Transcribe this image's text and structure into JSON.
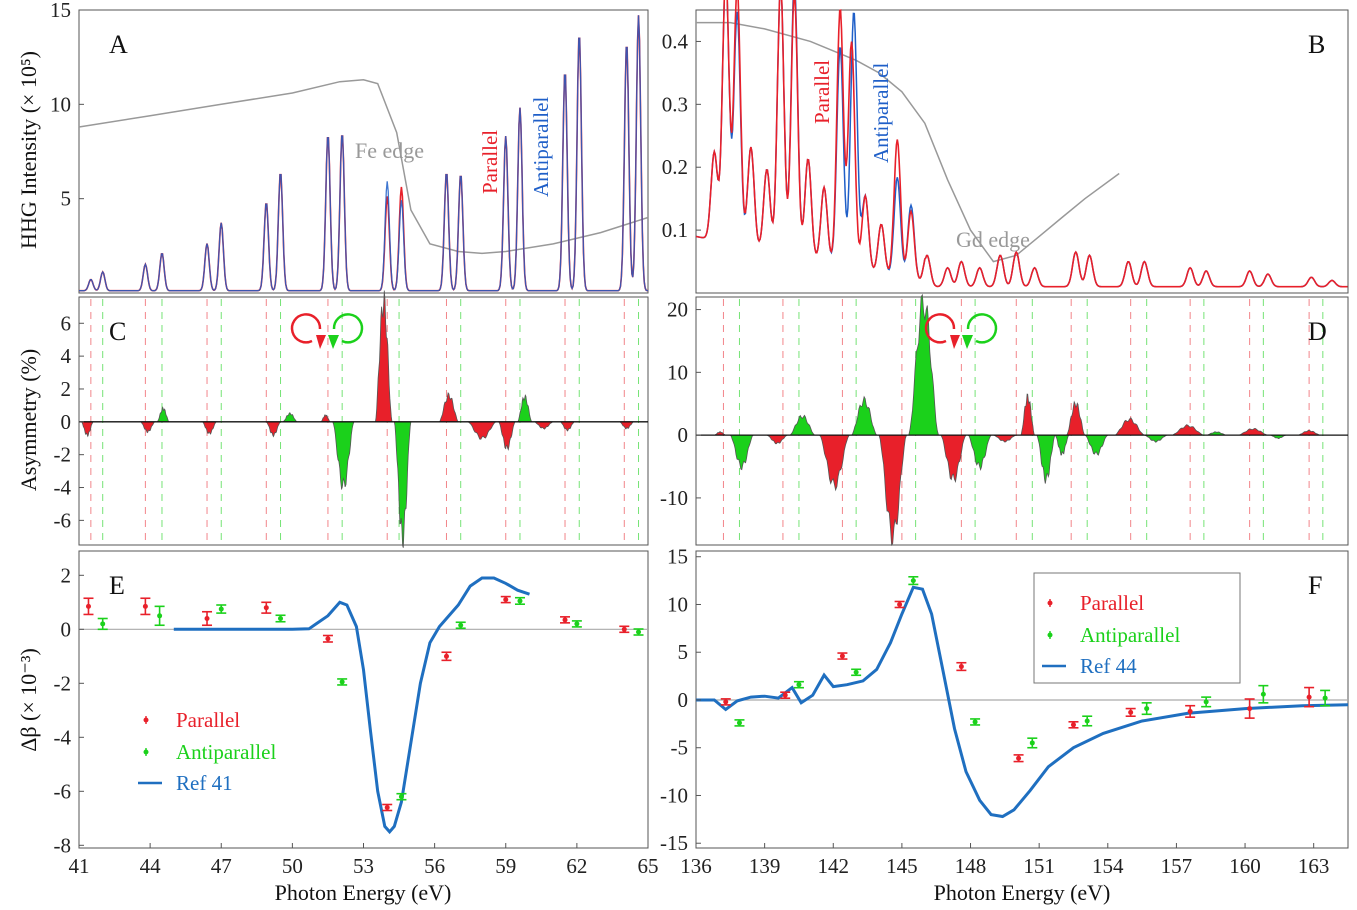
{
  "colors": {
    "parallel": "#e8202a",
    "antiparallel": "#1bd11b",
    "antiparallel_line": "#1f5fc8",
    "ref": "#1f6fc0",
    "edge": "#999999",
    "frame": "#555555",
    "overlay": "#8e3b7a"
  },
  "axes": {
    "x_label": "Photon Energy (eV)",
    "y_label_hhg": "HHG Intensity (× 10⁵)",
    "y_label_asym": "Asymmetry (%)",
    "y_label_dbeta": "Δβ (× 10⁻³)"
  },
  "chart_data": [
    {
      "panel": "A",
      "type": "line",
      "xlim": [
        41,
        65
      ],
      "ylim": [
        0,
        15
      ],
      "yticks": [
        5,
        10,
        15
      ],
      "series": [
        {
          "name": "Parallel"
        },
        {
          "name": "Antiparallel"
        }
      ],
      "harmonics_parallel": [
        [
          41.5,
          0.6
        ],
        [
          42.0,
          1.0
        ],
        [
          43.8,
          1.4
        ],
        [
          44.5,
          2.0
        ],
        [
          46.4,
          2.5
        ],
        [
          47.0,
          3.6
        ],
        [
          48.9,
          4.7
        ],
        [
          49.5,
          6.3
        ],
        [
          51.5,
          8.3
        ],
        [
          52.1,
          8.4
        ],
        [
          54.0,
          5.0
        ],
        [
          54.6,
          5.5
        ],
        [
          56.5,
          6.3
        ],
        [
          57.1,
          6.2
        ],
        [
          59.0,
          8.2
        ],
        [
          59.6,
          9.7
        ],
        [
          61.5,
          11.7
        ],
        [
          62.1,
          13.7
        ],
        [
          64.1,
          13.2
        ],
        [
          64.6,
          14.6
        ]
      ],
      "harmonics_antiparallel": [
        [
          54.0,
          5.8
        ],
        [
          54.6,
          4.8
        ]
      ],
      "edge_label": "Fe edge",
      "edge_curve": [
        [
          41,
          8.8
        ],
        [
          44,
          9.4
        ],
        [
          47,
          10.0
        ],
        [
          50,
          10.6
        ],
        [
          52,
          11.2
        ],
        [
          53,
          11.3
        ],
        [
          53.6,
          11.1
        ],
        [
          54.4,
          8.5
        ],
        [
          55,
          4.4
        ],
        [
          55.8,
          2.6
        ],
        [
          57,
          2.2
        ],
        [
          58,
          2.1
        ],
        [
          59,
          2.2
        ],
        [
          61,
          2.6
        ],
        [
          63,
          3.2
        ],
        [
          65,
          4.0
        ]
      ]
    },
    {
      "panel": "B",
      "type": "line",
      "xlim": [
        136,
        164.5
      ],
      "ylim": [
        0,
        0.45
      ],
      "yticks": [
        0.1,
        0.2,
        0.3,
        0.4
      ],
      "series": [
        {
          "name": "Parallel"
        },
        {
          "name": "Antiparallel"
        }
      ],
      "harmonics_parallel": [
        [
          136.8,
          0.14
        ],
        [
          137.3,
          0.43
        ],
        [
          137.8,
          0.41
        ],
        [
          138.4,
          0.16
        ],
        [
          139.1,
          0.13
        ],
        [
          139.7,
          0.43
        ],
        [
          140.3,
          0.42
        ],
        [
          140.9,
          0.16
        ],
        [
          141.6,
          0.12
        ],
        [
          142.3,
          0.41
        ],
        [
          142.8,
          0.36
        ],
        [
          143.4,
          0.12
        ],
        [
          144.1,
          0.08
        ],
        [
          144.8,
          0.22
        ],
        [
          145.4,
          0.11
        ],
        [
          146.1,
          0.05
        ],
        [
          147.0,
          0.03
        ],
        [
          147.6,
          0.04
        ],
        [
          148.4,
          0.03
        ],
        [
          149.3,
          0.05
        ],
        [
          150.0,
          0.055
        ],
        [
          150.8,
          0.03
        ],
        [
          152.6,
          0.055
        ],
        [
          153.2,
          0.05
        ],
        [
          154.9,
          0.04
        ],
        [
          155.6,
          0.04
        ],
        [
          157.6,
          0.03
        ],
        [
          158.3,
          0.025
        ],
        [
          160.2,
          0.025
        ],
        [
          161.0,
          0.02
        ],
        [
          162.9,
          0.015
        ],
        [
          163.8,
          0.01
        ]
      ],
      "harmonics_antiparallel": [
        [
          137.8,
          0.37
        ],
        [
          140.3,
          0.44
        ],
        [
          142.3,
          0.35
        ],
        [
          142.9,
          0.41
        ],
        [
          144.8,
          0.16
        ],
        [
          145.4,
          0.12
        ]
      ],
      "edge_label": "Gd edge",
      "edge_curve": [
        [
          136,
          0.43
        ],
        [
          137.5,
          0.43
        ],
        [
          139,
          0.42
        ],
        [
          141,
          0.4
        ],
        [
          143,
          0.37
        ],
        [
          144,
          0.35
        ],
        [
          145,
          0.32
        ],
        [
          146,
          0.27
        ],
        [
          147,
          0.18
        ],
        [
          148,
          0.1
        ],
        [
          149,
          0.05
        ],
        [
          150,
          0.06
        ],
        [
          151,
          0.09
        ],
        [
          152,
          0.12
        ],
        [
          153,
          0.15
        ],
        [
          154.5,
          0.19
        ]
      ]
    },
    {
      "panel": "C",
      "type": "area",
      "xlim": [
        41,
        65
      ],
      "ylim": [
        -7.5,
        7.6
      ],
      "yticks": [
        -6,
        -4,
        -2,
        0,
        2,
        4,
        6
      ],
      "parallel_harmonics": [
        41.5,
        43.8,
        46.4,
        48.9,
        51.5,
        54.0,
        56.5,
        59.0,
        61.5,
        64.0
      ],
      "antiparallel_harmonics": [
        42.0,
        44.5,
        47.0,
        49.5,
        52.1,
        54.5,
        57.1,
        59.6,
        62.1,
        64.6
      ],
      "lobes": [
        [
          41.1,
          41.6,
          -0.8,
          "red"
        ],
        [
          43.6,
          44.2,
          -0.6,
          "red"
        ],
        [
          44.3,
          44.8,
          0.8,
          "green"
        ],
        [
          46.2,
          46.8,
          -0.7,
          "red"
        ],
        [
          48.9,
          49.5,
          -0.8,
          "red"
        ],
        [
          49.6,
          50.2,
          0.5,
          "green"
        ],
        [
          51.2,
          51.6,
          0.4,
          "red"
        ],
        [
          51.7,
          52.6,
          -3.9,
          "green"
        ],
        [
          53.5,
          54.2,
          7.3,
          "red"
        ],
        [
          54.3,
          55.0,
          -7.0,
          "green"
        ],
        [
          56.2,
          57.0,
          1.6,
          "red"
        ],
        [
          57.4,
          58.6,
          -1.0,
          "red"
        ],
        [
          58.7,
          59.4,
          -1.6,
          "red"
        ],
        [
          59.5,
          60.1,
          1.5,
          "green"
        ],
        [
          60.2,
          61.0,
          -0.4,
          "red"
        ],
        [
          61.3,
          61.9,
          -0.5,
          "red"
        ],
        [
          63.8,
          64.4,
          -0.4,
          "red"
        ]
      ]
    },
    {
      "panel": "D",
      "type": "area",
      "xlim": [
        136,
        164.5
      ],
      "ylim": [
        -17.5,
        22
      ],
      "yticks": [
        -10,
        0,
        10,
        20
      ],
      "parallel_harmonics": [
        137.2,
        139.8,
        142.4,
        145.0,
        147.6,
        150.0,
        152.4,
        155.0,
        157.6,
        160.2,
        162.8
      ],
      "antiparallel_harmonics": [
        137.9,
        140.5,
        143.0,
        145.6,
        148.2,
        150.7,
        153.1,
        155.7,
        158.2,
        160.8,
        163.4
      ],
      "lobes": [
        [
          136.8,
          137.3,
          0.5,
          "red"
        ],
        [
          137.5,
          138.5,
          -5.0,
          "green"
        ],
        [
          139.1,
          140.0,
          -1.3,
          "red"
        ],
        [
          140.1,
          141.2,
          3.0,
          "green"
        ],
        [
          141.4,
          142.7,
          -8.0,
          "red"
        ],
        [
          142.8,
          143.9,
          5.5,
          "green"
        ],
        [
          144.0,
          145.2,
          -16.0,
          "red"
        ],
        [
          145.3,
          146.6,
          21.0,
          "green"
        ],
        [
          146.7,
          147.8,
          -7.0,
          "red"
        ],
        [
          147.9,
          148.9,
          -5.0,
          "green"
        ],
        [
          149.0,
          150.0,
          -1.0,
          "red"
        ],
        [
          150.2,
          150.8,
          6.0,
          "red"
        ],
        [
          150.9,
          151.7,
          -7.0,
          "green"
        ],
        [
          151.7,
          152.3,
          -3.0,
          "green"
        ],
        [
          152.2,
          153.0,
          5.0,
          "red"
        ],
        [
          153.0,
          154.0,
          -3.0,
          "green"
        ],
        [
          154.3,
          155.6,
          2.5,
          "red"
        ],
        [
          155.6,
          156.6,
          -1.0,
          "green"
        ],
        [
          156.8,
          158.2,
          1.5,
          "red"
        ],
        [
          158.3,
          159.2,
          0.5,
          "green"
        ],
        [
          159.7,
          161.0,
          1.0,
          "red"
        ],
        [
          161.1,
          161.8,
          -0.5,
          "green"
        ],
        [
          162.3,
          163.3,
          0.7,
          "red"
        ]
      ]
    },
    {
      "panel": "E",
      "type": "scatter",
      "xlim": [
        41,
        65
      ],
      "ylim": [
        -8.1,
        2.9
      ],
      "xticks": [
        41,
        44,
        47,
        50,
        53,
        56,
        59,
        62,
        65
      ],
      "yticks": [
        -8,
        -6,
        -4,
        -2,
        0,
        2
      ],
      "legend": {
        "position": "left",
        "parallel": "Parallel",
        "antiparallel": "Antiparallel",
        "ref": "Ref 41"
      },
      "parallel": [
        [
          41.4,
          0.85,
          0.3
        ],
        [
          43.8,
          0.85,
          0.3
        ],
        [
          46.4,
          0.4,
          0.25
        ],
        [
          48.9,
          0.8,
          0.2
        ],
        [
          51.5,
          -0.35,
          0.12
        ],
        [
          54.0,
          -6.6,
          0.1
        ],
        [
          56.5,
          -1.0,
          0.15
        ],
        [
          59.0,
          1.1,
          0.1
        ],
        [
          61.5,
          0.35,
          0.1
        ],
        [
          64.0,
          0.0,
          0.08
        ]
      ],
      "antiparallel": [
        [
          42.0,
          0.2,
          0.2
        ],
        [
          44.4,
          0.5,
          0.35
        ],
        [
          47.0,
          0.75,
          0.15
        ],
        [
          49.5,
          0.4,
          0.12
        ],
        [
          52.1,
          -1.95,
          0.1
        ],
        [
          54.6,
          -6.2,
          0.1
        ],
        [
          57.1,
          0.15,
          0.1
        ],
        [
          59.6,
          1.05,
          0.12
        ],
        [
          62.0,
          0.2,
          0.08
        ],
        [
          64.6,
          -0.1,
          0.1
        ]
      ],
      "ref": [
        [
          45,
          0
        ],
        [
          47,
          0
        ],
        [
          49,
          0
        ],
        [
          50,
          0
        ],
        [
          50.7,
          0.02
        ],
        [
          51.0,
          0.2
        ],
        [
          51.5,
          0.5
        ],
        [
          52.0,
          1.0
        ],
        [
          52.3,
          0.9
        ],
        [
          52.7,
          0.1
        ],
        [
          53.0,
          -1.5
        ],
        [
          53.3,
          -3.8
        ],
        [
          53.6,
          -6.0
        ],
        [
          53.9,
          -7.3
        ],
        [
          54.1,
          -7.5
        ],
        [
          54.3,
          -7.3
        ],
        [
          54.6,
          -6.4
        ],
        [
          55.0,
          -4.2
        ],
        [
          55.4,
          -2.0
        ],
        [
          55.8,
          -0.5
        ],
        [
          56.2,
          0.1
        ],
        [
          56.6,
          0.5
        ],
        [
          57.0,
          0.9
        ],
        [
          57.5,
          1.6
        ],
        [
          58.0,
          1.9
        ],
        [
          58.5,
          1.9
        ],
        [
          59.0,
          1.7
        ],
        [
          59.5,
          1.45
        ],
        [
          60.0,
          1.3
        ]
      ]
    },
    {
      "panel": "F",
      "type": "scatter",
      "xlim": [
        136,
        164.5
      ],
      "ylim": [
        -15.5,
        15.6
      ],
      "xticks": [
        136,
        139,
        142,
        145,
        148,
        151,
        154,
        157,
        160,
        163
      ],
      "yticks": [
        -15,
        -10,
        -5,
        0,
        5,
        10,
        15
      ],
      "legend": {
        "position": "top-right",
        "parallel": "Parallel",
        "antiparallel": "Antiparallel",
        "ref": "Ref 44"
      },
      "parallel": [
        [
          137.3,
          -0.2,
          0.15
        ],
        [
          139.9,
          0.5,
          0.2
        ],
        [
          142.4,
          4.6,
          0.25
        ],
        [
          144.9,
          10.0,
          0.3
        ],
        [
          147.6,
          3.5,
          0.4
        ],
        [
          150.1,
          -6.1,
          0.35
        ],
        [
          152.5,
          -2.6,
          0.3
        ],
        [
          155.0,
          -1.3,
          0.4
        ],
        [
          157.6,
          -1.2,
          0.6
        ],
        [
          160.2,
          -0.9,
          1.0
        ],
        [
          162.8,
          0.3,
          1.0
        ]
      ],
      "antiparallel": [
        [
          137.9,
          -2.4,
          0.3
        ],
        [
          140.5,
          1.6,
          0.25
        ],
        [
          143.0,
          2.9,
          0.3
        ],
        [
          145.5,
          12.5,
          0.4
        ],
        [
          148.2,
          -2.3,
          0.3
        ],
        [
          150.7,
          -4.5,
          0.5
        ],
        [
          153.1,
          -2.2,
          0.5
        ],
        [
          155.7,
          -0.9,
          0.6
        ],
        [
          158.3,
          -0.2,
          0.5
        ],
        [
          160.8,
          0.6,
          0.9
        ],
        [
          163.5,
          0.2,
          0.8
        ]
      ],
      "ref": [
        [
          136,
          0
        ],
        [
          136.8,
          0
        ],
        [
          137.3,
          -1.0
        ],
        [
          137.8,
          -0.1
        ],
        [
          138.4,
          0.3
        ],
        [
          139.0,
          0.4
        ],
        [
          139.6,
          0.2
        ],
        [
          140.2,
          1.3
        ],
        [
          140.6,
          -0.3
        ],
        [
          141.1,
          0.5
        ],
        [
          141.6,
          2.6
        ],
        [
          142.0,
          1.4
        ],
        [
          142.6,
          1.6
        ],
        [
          143.3,
          2.0
        ],
        [
          143.9,
          3.2
        ],
        [
          144.5,
          6.0
        ],
        [
          145.0,
          9.0
        ],
        [
          145.5,
          11.8
        ],
        [
          145.9,
          11.6
        ],
        [
          146.3,
          9.0
        ],
        [
          146.8,
          3.0
        ],
        [
          147.3,
          -3.0
        ],
        [
          147.8,
          -7.5
        ],
        [
          148.4,
          -10.5
        ],
        [
          148.9,
          -12.0
        ],
        [
          149.4,
          -12.2
        ],
        [
          149.9,
          -11.5
        ],
        [
          150.6,
          -9.5
        ],
        [
          151.4,
          -7.0
        ],
        [
          152.5,
          -5.0
        ],
        [
          153.8,
          -3.5
        ],
        [
          155.5,
          -2.2
        ],
        [
          157.5,
          -1.4
        ],
        [
          160.0,
          -0.9
        ],
        [
          162.5,
          -0.6
        ],
        [
          164.5,
          -0.5
        ]
      ]
    }
  ],
  "panels": [
    {
      "id": "A",
      "letter": "A",
      "label_parallel": "Parallel",
      "label_antiparallel": "Antiparallel",
      "edge_label": "Fe edge"
    },
    {
      "id": "B",
      "letter": "B",
      "label_parallel": "Parallel",
      "label_antiparallel": "Antiparallel",
      "edge_label": "Gd edge"
    },
    {
      "id": "C",
      "letter": "C"
    },
    {
      "id": "D",
      "letter": "D"
    },
    {
      "id": "E",
      "letter": "E"
    },
    {
      "id": "F",
      "letter": "F"
    }
  ]
}
